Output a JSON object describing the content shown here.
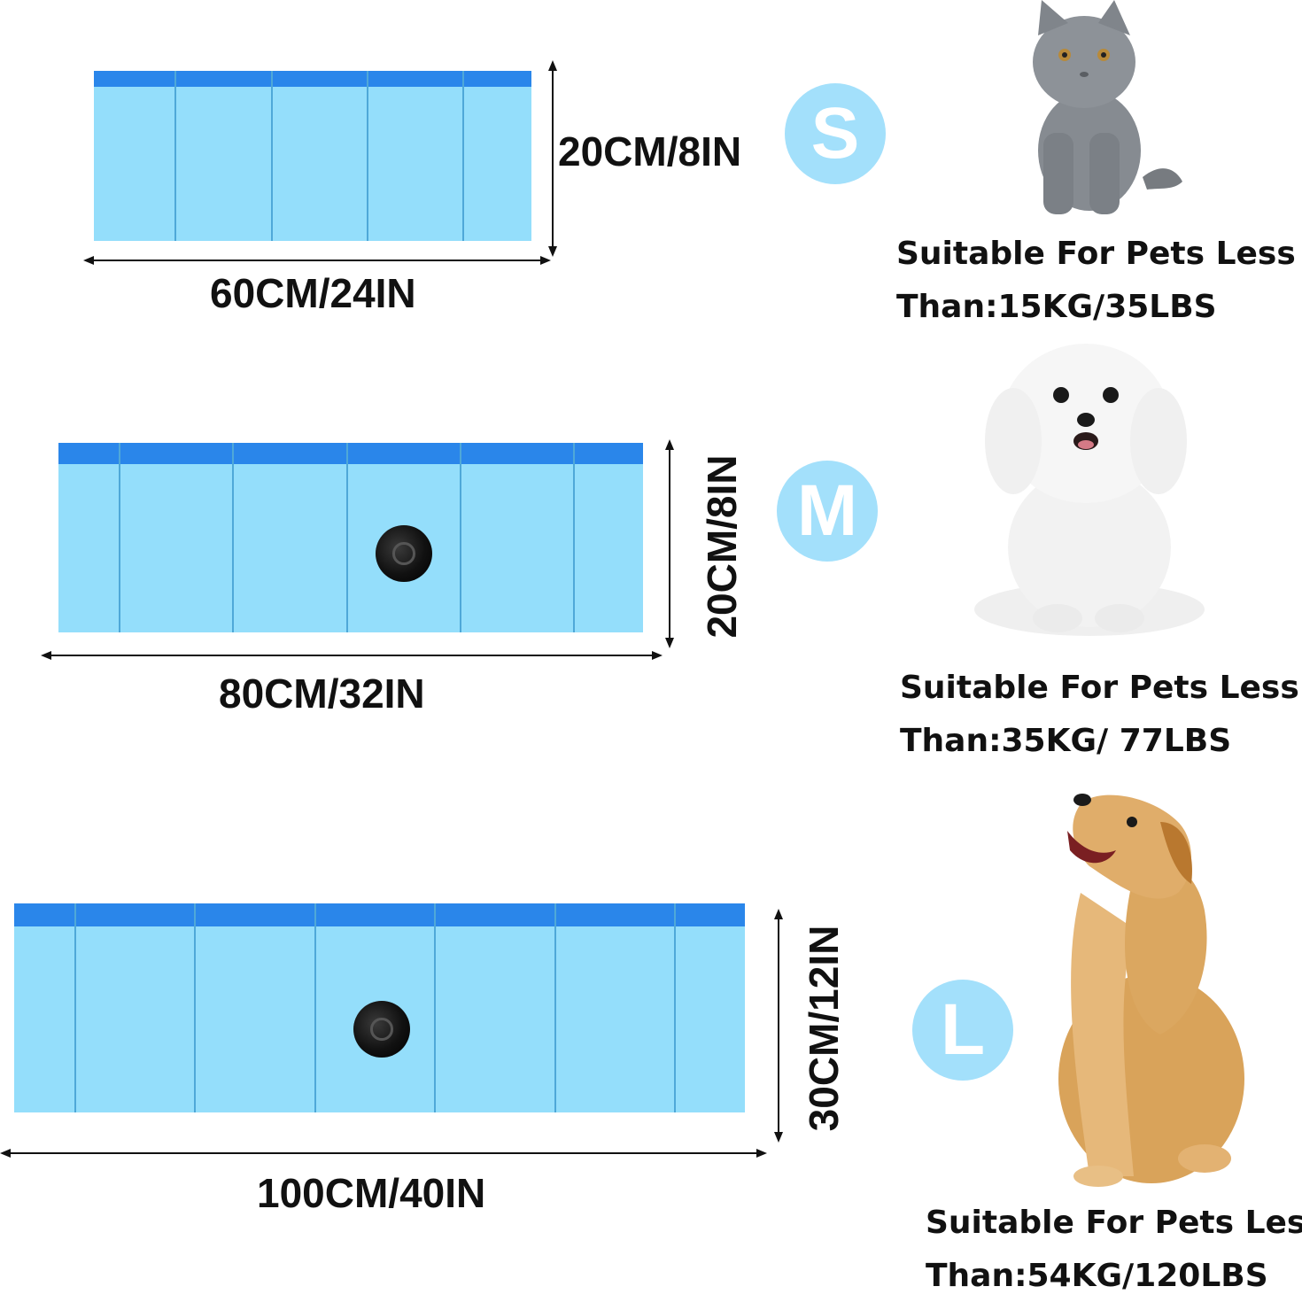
{
  "colors": {
    "pool_body": "#94defb",
    "pool_rim": "#2a86ea",
    "badge": "#a3e0fb",
    "text": "#111111"
  },
  "sizes": [
    {
      "badge": "S",
      "length": "60CM/24IN",
      "height": "20CM/8IN",
      "pet_icon": "cat-icon",
      "desc_line1": "Suitable For Pets Less",
      "desc_line2": "Than:15KG/35LBS"
    },
    {
      "badge": "M",
      "length": "80CM/32IN",
      "height": "20CM/8IN",
      "pet_icon": "poodle-icon",
      "desc_line1": "Suitable For Pets Less",
      "desc_line2": "Than:35KG/ 77LBS"
    },
    {
      "badge": "L",
      "length": "100CM/40IN",
      "height": "30CM/12IN",
      "pet_icon": "golden-retriever-icon",
      "desc_line1": "Suitable For Pets Less",
      "desc_line2": "Than:54KG/120LBS"
    }
  ]
}
